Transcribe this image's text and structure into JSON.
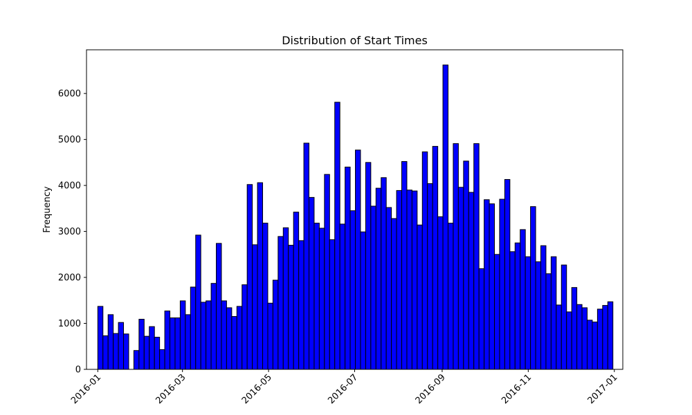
{
  "chart_data": {
    "type": "bar",
    "title": "Distribution of Start Times",
    "xlabel": "",
    "ylabel": "Frequency",
    "x_range": [
      "2015-12-24",
      "2017-01-07"
    ],
    "ylim": [
      0,
      6950
    ],
    "bin_range": [
      "2016-01-01",
      "2016-12-31"
    ],
    "yticks": [
      0,
      1000,
      2000,
      3000,
      4000,
      5000,
      6000
    ],
    "xticks": [
      "2016-01-01",
      "2016-03-01",
      "2016-05-01",
      "2016-07-01",
      "2016-09-01",
      "2016-11-01",
      "2017-01-01"
    ],
    "xtick_labels": [
      "2016-01",
      "2016-03",
      "2016-05",
      "2016-07",
      "2016-09",
      "2016-11",
      "2017-01"
    ],
    "bar_color": "#0000ff",
    "edge_color": "#000000",
    "grid": false,
    "values": [
      1370,
      730,
      1190,
      780,
      1020,
      770,
      0,
      410,
      1090,
      720,
      930,
      700,
      430,
      1270,
      1120,
      1120,
      1490,
      1190,
      1790,
      2920,
      1460,
      1490,
      1870,
      2740,
      1490,
      1340,
      1150,
      1370,
      1840,
      4020,
      2710,
      4060,
      3180,
      1440,
      1940,
      2890,
      3080,
      2700,
      3420,
      2800,
      4920,
      3740,
      3180,
      3070,
      4240,
      2820,
      5810,
      3160,
      4400,
      3450,
      4770,
      2990,
      4500,
      3550,
      3940,
      4170,
      3520,
      3280,
      3890,
      4520,
      3900,
      3880,
      3140,
      4730,
      4040,
      4850,
      3320,
      6620,
      3180,
      4910,
      3960,
      4530,
      3850,
      4910,
      2190,
      3690,
      3600,
      2500,
      3700,
      4130,
      2560,
      2750,
      3040,
      2450,
      3540,
      2340,
      2690,
      2080,
      2450,
      1400,
      2270,
      1250,
      1780,
      1410,
      1340,
      1070,
      1030,
      1310,
      1390,
      1470
    ]
  }
}
